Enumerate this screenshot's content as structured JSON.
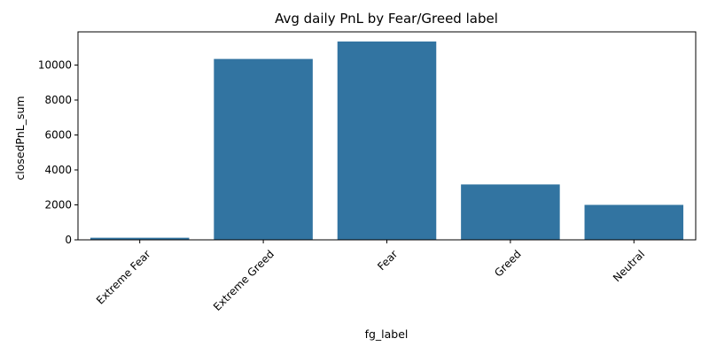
{
  "chart_data": {
    "type": "bar",
    "title": "Avg daily PnL by Fear/Greed label",
    "xlabel": "fg_label",
    "ylabel": "closedPnL_sum",
    "categories": [
      "Extreme Fear",
      "Extreme Greed",
      "Fear",
      "Greed",
      "Neutral"
    ],
    "values": [
      120,
      10350,
      11350,
      3170,
      2000
    ],
    "yticks": [
      0,
      2000,
      4000,
      6000,
      8000,
      10000
    ],
    "ylim": [
      0,
      11900
    ],
    "grid": false,
    "legend": "none",
    "colors": {
      "bar": "#3274a1"
    }
  }
}
